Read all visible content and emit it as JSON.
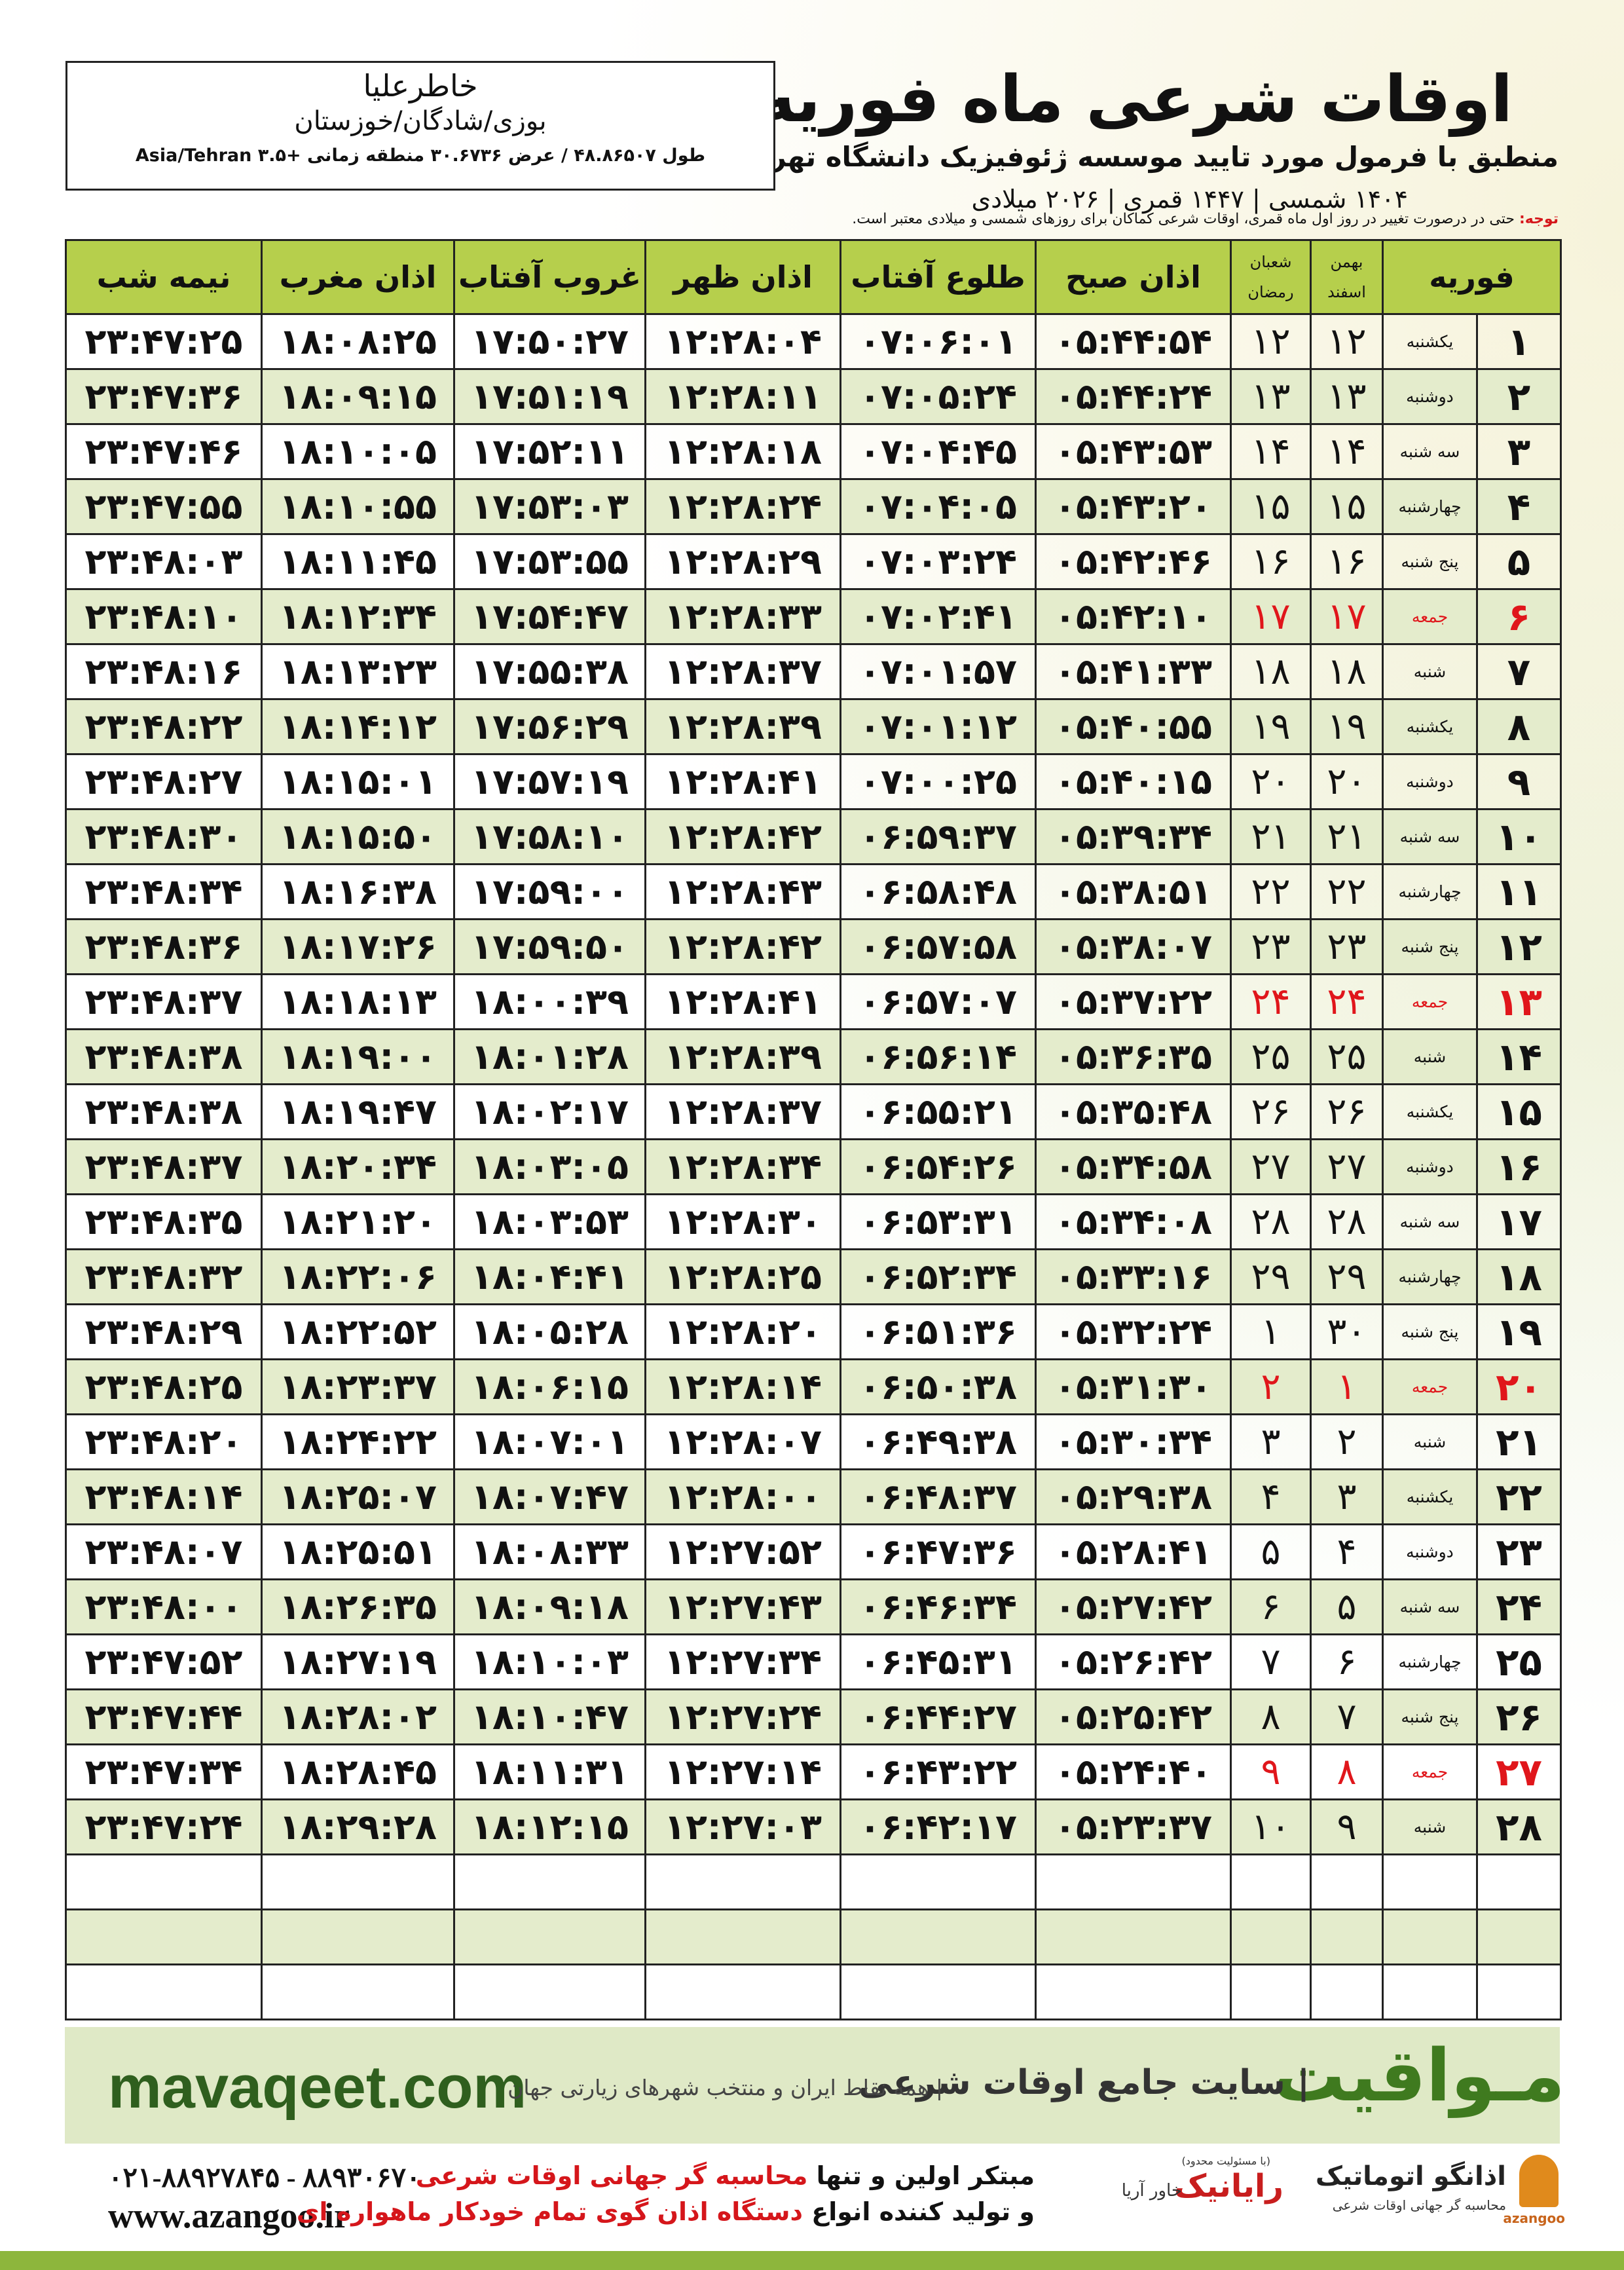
{
  "header": {
    "title": "اوقات شرعی ماه فوریه",
    "subtitle": "منطبق با فرمول مورد تایید موسسه ژئوفیزیک دانشگاه تهران",
    "dates": "۱۴۰۴ شمسی | ۱۴۴۷ قمری | ۲۰۲۶ میلادی"
  },
  "location": {
    "name": "خاطرعلیا",
    "region": "بوزی/شادگان/خوزستان",
    "coords": "طول ۴۸.۸۶۵۰۷ / عرض ۳۰.۶۷۳۶ منطقه زمانی +۳.۵ Asia/Tehran"
  },
  "note": {
    "label": "توجه:",
    "text": "حتی در درصورت تغییر در روز اول ماه قمری، اوقات شرعی کماکان برای روزهای شمسی و میلادی معتبر است."
  },
  "table": {
    "headers": {
      "month": "فوریه",
      "shamsi": [
        "بهمن",
        "اسفند"
      ],
      "qamari": [
        "شعبان",
        "رمضان"
      ],
      "times": [
        "اذان صبح",
        "طلوع آفتاب",
        "اذان ظهر",
        "غروب آفتاب",
        "اذان مغرب",
        "نیمه شب"
      ]
    },
    "highlight_color": "#e0161b",
    "rows": [
      {
        "cells": [
          "۱",
          "یکشنبه",
          "۱۲",
          "۱۲",
          "۰۵:۴۴:۵۴",
          "۰۷:۰۶:۰۱",
          "۱۲:۲۸:۰۴",
          "۱۷:۵۰:۲۷",
          "۱۸:۰۸:۲۵",
          "۲۳:۴۷:۲۵"
        ]
      },
      {
        "cells": [
          "۲",
          "دوشنبه",
          "۱۳",
          "۱۳",
          "۰۵:۴۴:۲۴",
          "۰۷:۰۵:۲۴",
          "۱۲:۲۸:۱۱",
          "۱۷:۵۱:۱۹",
          "۱۸:۰۹:۱۵",
          "۲۳:۴۷:۳۶"
        ]
      },
      {
        "cells": [
          "۳",
          "سه شنبه",
          "۱۴",
          "۱۴",
          "۰۵:۴۳:۵۳",
          "۰۷:۰۴:۴۵",
          "۱۲:۲۸:۱۸",
          "۱۷:۵۲:۱۱",
          "۱۸:۱۰:۰۵",
          "۲۳:۴۷:۴۶"
        ]
      },
      {
        "cells": [
          "۴",
          "چهارشنبه",
          "۱۵",
          "۱۵",
          "۰۵:۴۳:۲۰",
          "۰۷:۰۴:۰۵",
          "۱۲:۲۸:۲۴",
          "۱۷:۵۳:۰۳",
          "۱۸:۱۰:۵۵",
          "۲۳:۴۷:۵۵"
        ]
      },
      {
        "cells": [
          "۵",
          "پنج شنبه",
          "۱۶",
          "۱۶",
          "۰۵:۴۲:۴۶",
          "۰۷:۰۳:۲۴",
          "۱۲:۲۸:۲۹",
          "۱۷:۵۳:۵۵",
          "۱۸:۱۱:۴۵",
          "۲۳:۴۸:۰۳"
        ]
      },
      {
        "cells": [
          "۶",
          "جمعه",
          "۱۷",
          "۱۷",
          "۰۵:۴۲:۱۰",
          "۰۷:۰۲:۴۱",
          "۱۲:۲۸:۳۳",
          "۱۷:۵۴:۴۷",
          "۱۸:۱۲:۳۴",
          "۲۳:۴۸:۱۰"
        ],
        "highlight": true
      },
      {
        "cells": [
          "۷",
          "شنبه",
          "۱۸",
          "۱۸",
          "۰۵:۴۱:۳۳",
          "۰۷:۰۱:۵۷",
          "۱۲:۲۸:۳۷",
          "۱۷:۵۵:۳۸",
          "۱۸:۱۳:۲۳",
          "۲۳:۴۸:۱۶"
        ]
      },
      {
        "cells": [
          "۸",
          "یکشنبه",
          "۱۹",
          "۱۹",
          "۰۵:۴۰:۵۵",
          "۰۷:۰۱:۱۲",
          "۱۲:۲۸:۳۹",
          "۱۷:۵۶:۲۹",
          "۱۸:۱۴:۱۲",
          "۲۳:۴۸:۲۲"
        ]
      },
      {
        "cells": [
          "۹",
          "دوشنبه",
          "۲۰",
          "۲۰",
          "۰۵:۴۰:۱۵",
          "۰۷:۰۰:۲۵",
          "۱۲:۲۸:۴۱",
          "۱۷:۵۷:۱۹",
          "۱۸:۱۵:۰۱",
          "۲۳:۴۸:۲۷"
        ]
      },
      {
        "cells": [
          "۱۰",
          "سه شنبه",
          "۲۱",
          "۲۱",
          "۰۵:۳۹:۳۴",
          "۰۶:۵۹:۳۷",
          "۱۲:۲۸:۴۲",
          "۱۷:۵۸:۱۰",
          "۱۸:۱۵:۵۰",
          "۲۳:۴۸:۳۰"
        ]
      },
      {
        "cells": [
          "۱۱",
          "چهارشنبه",
          "۲۲",
          "۲۲",
          "۰۵:۳۸:۵۱",
          "۰۶:۵۸:۴۸",
          "۱۲:۲۸:۴۳",
          "۱۷:۵۹:۰۰",
          "۱۸:۱۶:۳۸",
          "۲۳:۴۸:۳۴"
        ]
      },
      {
        "cells": [
          "۱۲",
          "پنج شنبه",
          "۲۳",
          "۲۳",
          "۰۵:۳۸:۰۷",
          "۰۶:۵۷:۵۸",
          "۱۲:۲۸:۴۲",
          "۱۷:۵۹:۵۰",
          "۱۸:۱۷:۲۶",
          "۲۳:۴۸:۳۶"
        ]
      },
      {
        "cells": [
          "۱۳",
          "جمعه",
          "۲۴",
          "۲۴",
          "۰۵:۳۷:۲۲",
          "۰۶:۵۷:۰۷",
          "۱۲:۲۸:۴۱",
          "۱۸:۰۰:۳۹",
          "۱۸:۱۸:۱۳",
          "۲۳:۴۸:۳۷"
        ],
        "highlight": true
      },
      {
        "cells": [
          "۱۴",
          "شنبه",
          "۲۵",
          "۲۵",
          "۰۵:۳۶:۳۵",
          "۰۶:۵۶:۱۴",
          "۱۲:۲۸:۳۹",
          "۱۸:۰۱:۲۸",
          "۱۸:۱۹:۰۰",
          "۲۳:۴۸:۳۸"
        ]
      },
      {
        "cells": [
          "۱۵",
          "یکشنبه",
          "۲۶",
          "۲۶",
          "۰۵:۳۵:۴۸",
          "۰۶:۵۵:۲۱",
          "۱۲:۲۸:۳۷",
          "۱۸:۰۲:۱۷",
          "۱۸:۱۹:۴۷",
          "۲۳:۴۸:۳۸"
        ]
      },
      {
        "cells": [
          "۱۶",
          "دوشنبه",
          "۲۷",
          "۲۷",
          "۰۵:۳۴:۵۸",
          "۰۶:۵۴:۲۶",
          "۱۲:۲۸:۳۴",
          "۱۸:۰۳:۰۵",
          "۱۸:۲۰:۳۴",
          "۲۳:۴۸:۳۷"
        ]
      },
      {
        "cells": [
          "۱۷",
          "سه شنبه",
          "۲۸",
          "۲۸",
          "۰۵:۳۴:۰۸",
          "۰۶:۵۳:۳۱",
          "۱۲:۲۸:۳۰",
          "۱۸:۰۳:۵۳",
          "۱۸:۲۱:۲۰",
          "۲۳:۴۸:۳۵"
        ]
      },
      {
        "cells": [
          "۱۸",
          "چهارشنبه",
          "۲۹",
          "۲۹",
          "۰۵:۳۳:۱۶",
          "۰۶:۵۲:۳۴",
          "۱۲:۲۸:۲۵",
          "۱۸:۰۴:۴۱",
          "۱۸:۲۲:۰۶",
          "۲۳:۴۸:۳۲"
        ]
      },
      {
        "cells": [
          "۱۹",
          "پنج شنبه",
          "۳۰",
          "۱",
          "۰۵:۳۲:۲۴",
          "۰۶:۵۱:۳۶",
          "۱۲:۲۸:۲۰",
          "۱۸:۰۵:۲۸",
          "۱۸:۲۲:۵۲",
          "۲۳:۴۸:۲۹"
        ]
      },
      {
        "cells": [
          "۲۰",
          "جمعه",
          "۱",
          "۲",
          "۰۵:۳۱:۳۰",
          "۰۶:۵۰:۳۸",
          "۱۲:۲۸:۱۴",
          "۱۸:۰۶:۱۵",
          "۱۸:۲۳:۳۷",
          "۲۳:۴۸:۲۵"
        ],
        "highlight": true
      },
      {
        "cells": [
          "۲۱",
          "شنبه",
          "۲",
          "۳",
          "۰۵:۳۰:۳۴",
          "۰۶:۴۹:۳۸",
          "۱۲:۲۸:۰۷",
          "۱۸:۰۷:۰۱",
          "۱۸:۲۴:۲۲",
          "۲۳:۴۸:۲۰"
        ]
      },
      {
        "cells": [
          "۲۲",
          "یکشنبه",
          "۳",
          "۴",
          "۰۵:۲۹:۳۸",
          "۰۶:۴۸:۳۷",
          "۱۲:۲۸:۰۰",
          "۱۸:۰۷:۴۷",
          "۱۸:۲۵:۰۷",
          "۲۳:۴۸:۱۴"
        ]
      },
      {
        "cells": [
          "۲۳",
          "دوشنبه",
          "۴",
          "۵",
          "۰۵:۲۸:۴۱",
          "۰۶:۴۷:۳۶",
          "۱۲:۲۷:۵۲",
          "۱۸:۰۸:۳۳",
          "۱۸:۲۵:۵۱",
          "۲۳:۴۸:۰۷"
        ]
      },
      {
        "cells": [
          "۲۴",
          "سه شنبه",
          "۵",
          "۶",
          "۰۵:۲۷:۴۲",
          "۰۶:۴۶:۳۴",
          "۱۲:۲۷:۴۳",
          "۱۸:۰۹:۱۸",
          "۱۸:۲۶:۳۵",
          "۲۳:۴۸:۰۰"
        ]
      },
      {
        "cells": [
          "۲۵",
          "چهارشنبه",
          "۶",
          "۷",
          "۰۵:۲۶:۴۲",
          "۰۶:۴۵:۳۱",
          "۱۲:۲۷:۳۴",
          "۱۸:۱۰:۰۳",
          "۱۸:۲۷:۱۹",
          "۲۳:۴۷:۵۲"
        ]
      },
      {
        "cells": [
          "۲۶",
          "پنج شنبه",
          "۷",
          "۸",
          "۰۵:۲۵:۴۲",
          "۰۶:۴۴:۲۷",
          "۱۲:۲۷:۲۴",
          "۱۸:۱۰:۴۷",
          "۱۸:۲۸:۰۲",
          "۲۳:۴۷:۴۴"
        ]
      },
      {
        "cells": [
          "۲۷",
          "جمعه",
          "۸",
          "۹",
          "۰۵:۲۴:۴۰",
          "۰۶:۴۳:۲۲",
          "۱۲:۲۷:۱۴",
          "۱۸:۱۱:۳۱",
          "۱۸:۲۸:۴۵",
          "۲۳:۴۷:۳۴"
        ],
        "highlight": true
      },
      {
        "cells": [
          "۲۸",
          "شنبه",
          "۹",
          "۱۰",
          "۰۵:۲۳:۳۷",
          "۰۶:۴۲:۱۷",
          "۱۲:۲۷:۰۳",
          "۱۸:۱۲:۱۵",
          "۱۸:۲۹:۲۸",
          "۲۳:۴۷:۲۴"
        ]
      }
    ]
  },
  "footer": {
    "site": "mavaqeet.com",
    "brand": "مـواقیت",
    "slogan": "| سایت جامع اوقات شرعی",
    "slogan2": "| همه نقاط ایران و منتخب شهرهای زیارتی جهان",
    "phone": "۰۲۱-۸۸۹۲۷۸۴۵ - ۸۸۹۳۰۶۷۰",
    "www": "www.azangoo.ir",
    "line1": [
      "مبتکر اولین و تنها",
      "محاسبه گر جهانی اوقات شرعی"
    ],
    "line2": [
      "و تولید کننده انواع",
      "دستگاه اذان گوی تمام خودکار ماهواره ای"
    ],
    "logo1": "رایانیک",
    "logo1_sub": "خاور آریا",
    "logo1_note": "(با مسئولیت محدود)",
    "logo2": "اذانگو اتوماتیک",
    "logo2_sub": "محاسبه گر جهانی اوقات شرعی",
    "logo2_en": "azangoo"
  }
}
